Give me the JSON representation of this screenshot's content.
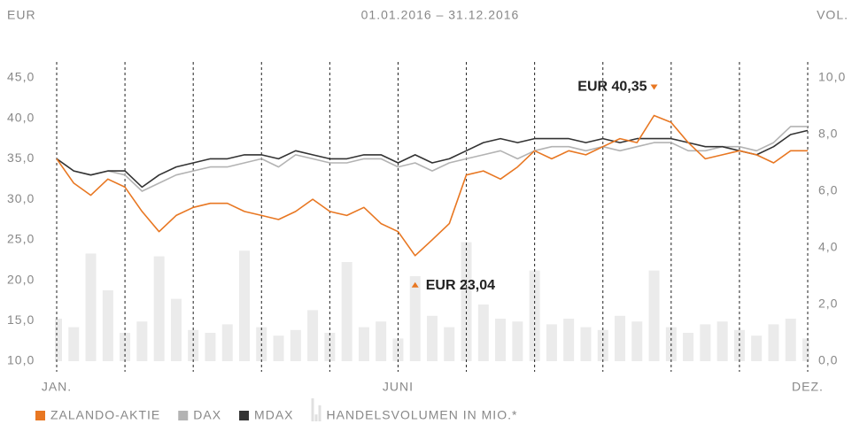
{
  "chart_data": {
    "type": "line",
    "title": "01.01.2016 – 31.12.2016",
    "y_label": "EUR",
    "y2_label": "VOL.",
    "x": [
      0,
      0.25,
      0.5,
      0.75,
      1,
      1.25,
      1.5,
      1.75,
      2,
      2.25,
      2.5,
      2.75,
      3,
      3.25,
      3.5,
      3.75,
      4,
      4.25,
      4.5,
      4.75,
      5,
      5.25,
      5.5,
      5.75,
      6,
      6.25,
      6.5,
      6.75,
      7,
      7.25,
      7.5,
      7.75,
      8,
      8.25,
      8.5,
      8.75,
      9,
      9.25,
      9.5,
      9.75,
      10,
      10.25,
      10.5,
      10.75,
      11
    ],
    "xlim": [
      0,
      11
    ],
    "xticks": [
      {
        "value": 0,
        "label": "JAN."
      },
      {
        "value": 5,
        "label": "JUNI"
      },
      {
        "value": 11,
        "label": "DEZ."
      }
    ],
    "xgrid": [
      0,
      1,
      2,
      3,
      4,
      5,
      6,
      7,
      8,
      9,
      10,
      11
    ],
    "ylim": [
      10,
      45
    ],
    "yticks": [
      {
        "value": 10,
        "label": "10,0"
      },
      {
        "value": 15,
        "label": "15,0"
      },
      {
        "value": 20,
        "label": "20,0"
      },
      {
        "value": 25,
        "label": "25,0"
      },
      {
        "value": 30,
        "label": "30,0"
      },
      {
        "value": 35,
        "label": "35,0"
      },
      {
        "value": 40,
        "label": "40,0"
      },
      {
        "value": 45,
        "label": "45,0"
      }
    ],
    "y2lim": [
      0,
      10
    ],
    "y2ticks": [
      {
        "value": 0,
        "label": "0,0"
      },
      {
        "value": 2,
        "label": "2,0"
      },
      {
        "value": 4,
        "label": "4,0"
      },
      {
        "value": 6,
        "label": "6,0"
      },
      {
        "value": 8,
        "label": "8,0"
      },
      {
        "value": 10,
        "label": "10,0"
      }
    ],
    "series": [
      {
        "name": "ZALANDO-AKTIE",
        "color": "#e87722",
        "values": [
          35,
          32,
          30.5,
          32.5,
          31.5,
          28.5,
          26,
          28,
          29,
          29.5,
          29.5,
          28.5,
          28,
          27.5,
          28.5,
          30,
          28.5,
          28,
          29,
          27,
          26,
          23.04,
          25,
          27,
          33,
          33.5,
          32.5,
          34,
          36,
          35,
          36,
          35.5,
          36.5,
          37.5,
          37,
          40.35,
          39.5,
          37,
          35,
          35.5,
          36,
          35.5,
          34.5,
          36,
          36
        ]
      },
      {
        "name": "DAX",
        "color": "#b3b3b3",
        "values": [
          35,
          33.5,
          33,
          33.5,
          33,
          31,
          32,
          33,
          33.5,
          34,
          34,
          34.5,
          35,
          34,
          35.5,
          35,
          34.5,
          34.5,
          35,
          35,
          34,
          34.5,
          33.5,
          34.5,
          35,
          35.5,
          36,
          35,
          36,
          36.5,
          36.5,
          36,
          36.5,
          36,
          36.5,
          37,
          37,
          36,
          36,
          36.5,
          36.5,
          36,
          37,
          39,
          39
        ]
      },
      {
        "name": "MDAX",
        "color": "#333333",
        "values": [
          35,
          33.5,
          33,
          33.5,
          33.5,
          31.5,
          33,
          34,
          34.5,
          35,
          35,
          35.5,
          35.5,
          35,
          36,
          35.5,
          35,
          35,
          35.5,
          35.5,
          34.5,
          35.5,
          34.5,
          35,
          36,
          37,
          37.5,
          37,
          37.5,
          37.5,
          37.5,
          37,
          37.5,
          37,
          37.5,
          37.5,
          37.5,
          37,
          36.5,
          36.5,
          36,
          35.5,
          36.5,
          38,
          38.5
        ]
      },
      {
        "name": "HANDELSVOLUMEN IN MIO.*",
        "color": "#ebebeb",
        "type": "bar",
        "axis": "y2",
        "values": [
          1.5,
          1.2,
          3.8,
          2.5,
          1.0,
          1.4,
          3.7,
          2.2,
          1.1,
          1.0,
          1.3,
          3.9,
          1.2,
          0.9,
          1.1,
          1.8,
          1.0,
          3.5,
          1.2,
          1.4,
          0.8,
          3.0,
          1.6,
          1.2,
          4.2,
          2.0,
          1.5,
          1.4,
          3.2,
          1.3,
          1.5,
          1.2,
          1.1,
          1.6,
          1.4,
          3.2,
          1.2,
          1.0,
          1.3,
          1.4,
          1.1,
          0.9,
          1.3,
          1.5,
          0.8
        ]
      }
    ],
    "annotations": [
      {
        "label": "EUR 40,35",
        "x": 8.75,
        "y": 40.35,
        "marker": "down"
      },
      {
        "label": "EUR 23,04",
        "x": 5.25,
        "y": 23.04,
        "marker": "up"
      }
    ]
  }
}
